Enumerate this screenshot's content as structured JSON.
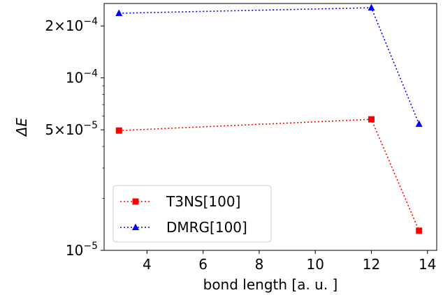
{
  "chart_data": {
    "type": "line",
    "title": "",
    "xlabel": "bond length [a. u. ]",
    "ylabel": "ΔE",
    "xlim": [
      2.47,
      14.33
    ],
    "ylim": [
      1e-05,
      0.00027
    ],
    "yscale": "log",
    "grid": false,
    "legend_position": "lower-left",
    "x_ticks": [
      4,
      6,
      8,
      10,
      12,
      14
    ],
    "y_ticks": [
      {
        "value": 1e-05,
        "base": "10",
        "exp": "−5",
        "mant": ""
      },
      {
        "value": 5e-05,
        "base": "10",
        "exp": "−5",
        "mant": "5"
      },
      {
        "value": 0.0001,
        "base": "10",
        "exp": "−4",
        "mant": ""
      },
      {
        "value": 0.0002,
        "base": "10",
        "exp": "−4",
        "mant": "2"
      }
    ],
    "series": [
      {
        "name": "T3NS[100]",
        "color": "#ff0000",
        "marker": "square",
        "x": [
          3.0,
          12.0,
          13.7
        ],
        "values": [
          4.95e-05,
          5.75e-05,
          1.3e-05
        ]
      },
      {
        "name": "DMRG[100]",
        "color": "#0000ff",
        "marker": "triangle",
        "x": [
          3.0,
          12.0,
          13.7
        ],
        "values": [
          0.000237,
          0.000255,
          5.4e-05
        ]
      }
    ]
  }
}
